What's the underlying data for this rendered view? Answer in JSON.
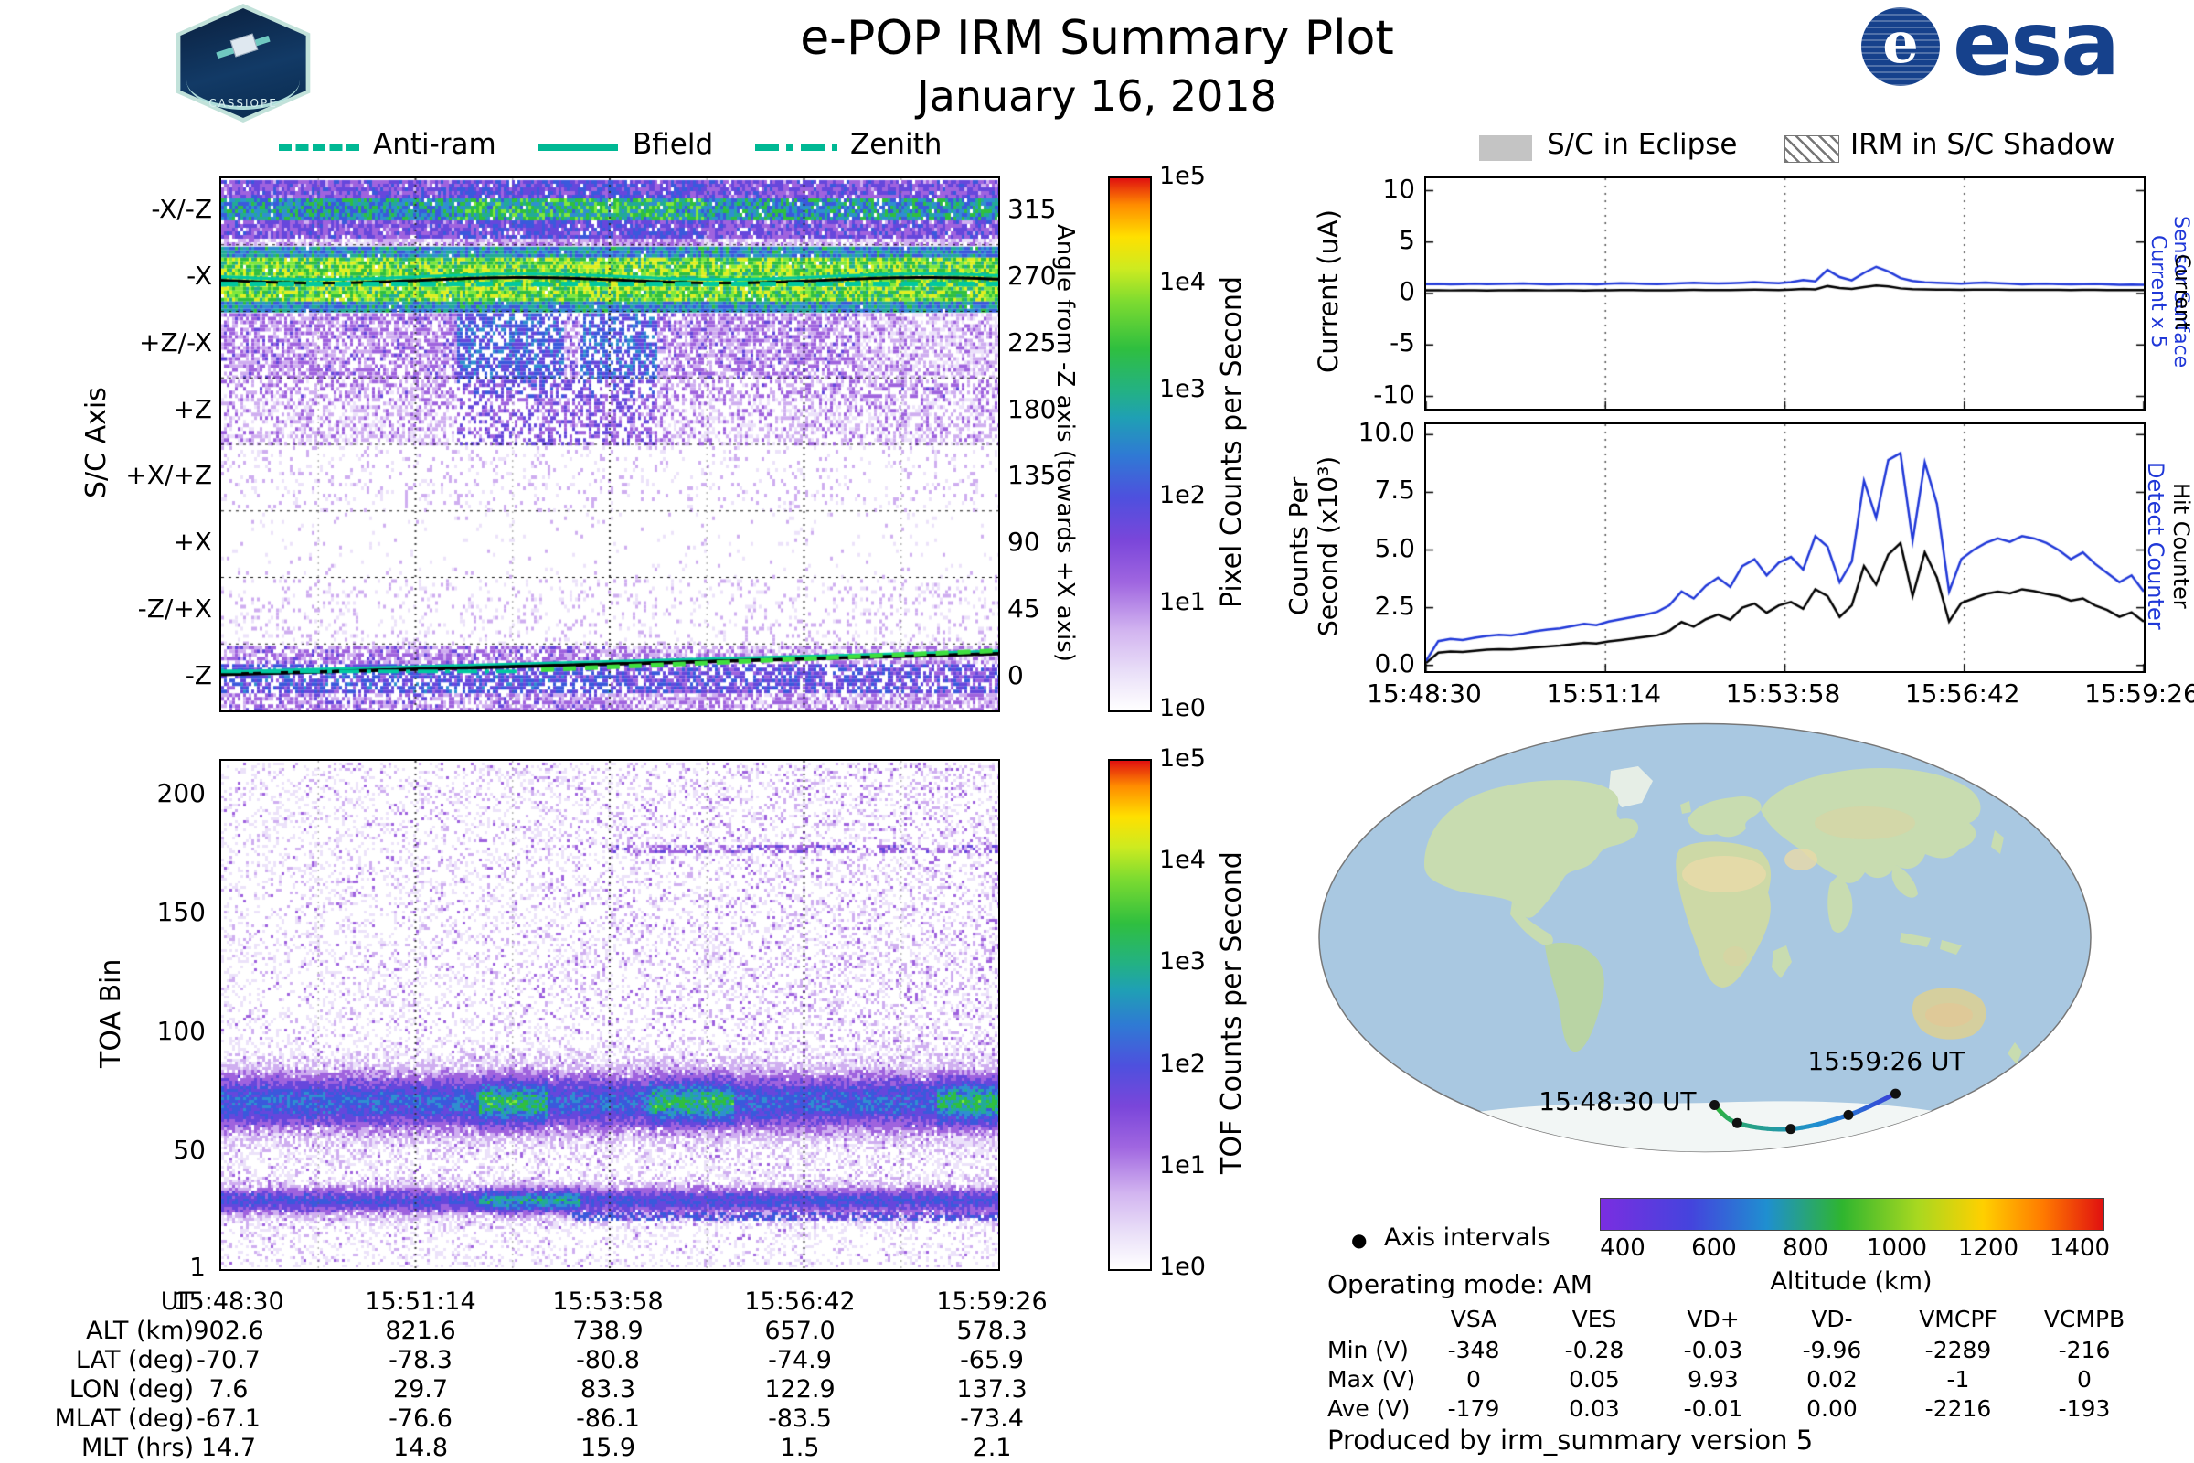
{
  "header": {
    "title": "e-POP IRM Summary Plot",
    "date": "January 16, 2018",
    "esa_logo_text": "esa",
    "cassiope_label": "CASSIOPE"
  },
  "colors": {
    "legend_teal": "#00b894",
    "series_blue": "#2038d8",
    "series_black": "#000000",
    "esa_blue": "#16418c"
  },
  "left_legend": {
    "anti_ram": "Anti-ram",
    "bfield": "Bfield",
    "zenith": "Zenith"
  },
  "right_legend": {
    "eclipse": "S/C in Eclipse",
    "shadow": "IRM in S/C Shadow"
  },
  "sc_axis_panel": {
    "ylabel": "S/C Axis",
    "row_labels": [
      "-X/-Z",
      "-X",
      "+Z/-X",
      "+Z",
      "+X/+Z",
      "+X",
      "-Z/+X",
      "-Z"
    ],
    "right_axis_label": "Angle from -Z axis (towards +X axis)",
    "right_ticks": [
      "315",
      "270",
      "225",
      "180",
      "135",
      "90",
      "45",
      "0"
    ],
    "colorbar": {
      "label": "Pixel Counts per Second",
      "ticks": [
        "1e5",
        "1e4",
        "1e3",
        "1e2",
        "1e1",
        "1e0"
      ]
    }
  },
  "toa_panel": {
    "ylabel": "TOA Bin",
    "yticks": [
      "200",
      "150",
      "100",
      "50",
      "1"
    ],
    "colorbar": {
      "label": "TOF Counts per Second",
      "ticks": [
        "1e5",
        "1e4",
        "1e3",
        "1e2",
        "1e1",
        "1e0"
      ]
    }
  },
  "time_axis": {
    "label": "UT",
    "ticks": [
      "15:48:30",
      "15:51:14",
      "15:53:58",
      "15:56:42",
      "15:59:26"
    ]
  },
  "current_panel": {
    "ylabel": "Current (uA)",
    "yticks": [
      "10",
      "5",
      "0",
      "-5",
      "-10"
    ],
    "right_labels": [
      {
        "text": "Sensor Surface Current x 5",
        "color": "#2038d8"
      },
      {
        "text": "Sensor Surface Current",
        "color": "#000000"
      }
    ]
  },
  "counts_panel": {
    "ylabel_lines": [
      "Counts Per",
      "Second (x10³)"
    ],
    "yticks": [
      "10.0",
      "7.5",
      "5.0",
      "2.5",
      "0.0"
    ],
    "right_labels": [
      {
        "text": "Detect Counter",
        "color": "#2038d8"
      },
      {
        "text": "Hit Counter",
        "color": "#000000"
      }
    ]
  },
  "ephemeris_table": {
    "rows": [
      {
        "label": "UT",
        "values": [
          "15:48:30",
          "15:51:14",
          "15:53:58",
          "15:56:42",
          "15:59:26"
        ]
      },
      {
        "label": "ALT (km)",
        "values": [
          "902.6",
          "821.6",
          "738.9",
          "657.0",
          "578.3"
        ]
      },
      {
        "label": "LAT (deg)",
        "values": [
          "-70.7",
          "-78.3",
          "-80.8",
          "-74.9",
          "-65.9"
        ]
      },
      {
        "label": "LON (deg)",
        "values": [
          "7.6",
          "29.7",
          "83.3",
          "122.9",
          "137.3"
        ]
      },
      {
        "label": "MLAT (deg)",
        "values": [
          "-67.1",
          "-76.6",
          "-86.1",
          "-83.5",
          "-73.4"
        ]
      },
      {
        "label": "MLT (hrs)",
        "values": [
          "14.7",
          "14.8",
          "15.9",
          "1.5",
          "2.1"
        ]
      }
    ]
  },
  "map_section": {
    "start_label": "15:48:30 UT",
    "end_label": "15:59:26 UT",
    "axis_intervals_label": "Axis intervals",
    "operating_mode": "Operating mode: AM",
    "altitude_bar": {
      "label": "Altitude (km)"
    },
    "produced_by": "Produced by irm_summary version 5"
  },
  "voltage_table": {
    "columns": [
      "VSA",
      "VES",
      "VD+",
      "VD-",
      "VMCPF",
      "VCMPB"
    ],
    "rows": [
      {
        "label": "Min (V)",
        "values": [
          "-348",
          "-0.28",
          "-0.03",
          "-9.96",
          "-2289",
          "-216"
        ]
      },
      {
        "label": "Max (V)",
        "values": [
          "0",
          "0.05",
          "9.93",
          "0.02",
          "-1",
          "0"
        ]
      },
      {
        "label": "Ave (V)",
        "values": [
          "-179",
          "0.03",
          "-0.01",
          "0.00",
          "-2216",
          "-193"
        ]
      }
    ]
  },
  "chart_data": [
    {
      "type": "heatmap",
      "name": "sc_axis_pixel_counts",
      "x_start": "15:48:30",
      "x_end": "15:59:26",
      "y_categories": [
        "-X/-Z",
        "-X",
        "+Z/-X",
        "+Z",
        "+X/+Z",
        "+X",
        "-Z/+X",
        "-Z"
      ],
      "right_axis_ticks_deg": [
        315,
        270,
        225,
        180,
        135,
        90,
        45,
        0
      ],
      "colorbar": {
        "label": "Pixel Counts per Second",
        "scale": "log10",
        "min": "1e0",
        "max": "1e5"
      },
      "row_activity_approx_counts": [
        "1e2-1e3 green band over purple noise",
        "1e3 continuous bright green band",
        "1e1 purple with 1e2 blue-green patches mid-interval",
        "1e1 sparse purple, patches mid-interval",
        "1e0 very sparse",
        "1e0 minimal",
        "1e0 very sparse",
        "1e1 purple band along pointing lines"
      ],
      "overlays": [
        {
          "name": "Bfield",
          "style": "solid",
          "angle_deg_start": 271,
          "angle_deg_end": 271
        },
        {
          "name": "Anti-ram",
          "style": "dashed",
          "angle_deg_start": 266,
          "angle_deg_end": 266
        },
        {
          "name": "Zenith",
          "style": "dash-dot",
          "angle_deg_start": 3,
          "angle_deg_end": 16
        }
      ]
    },
    {
      "type": "heatmap",
      "name": "toa_tof_counts",
      "ylabel": "TOA Bin",
      "y_range": [
        1,
        200
      ],
      "bands": [
        {
          "toa_bins": [
            55,
            88
          ],
          "intensity": "strong, ~1e2 blue-green core with 1e3 green patches"
        },
        {
          "toa_bins": [
            22,
            38
          ],
          "intensity": "strong, ~1e1-1e2 purple-blue with green patches mid-interval"
        }
      ],
      "diffuse": "sparse ~1e0-1e1 purple counts from bin 90 to 200, denser toward mid/right",
      "colorbar": {
        "label": "TOF Counts per Second",
        "scale": "log10",
        "min": "1e0",
        "max": "1e5"
      }
    },
    {
      "type": "line",
      "name": "sensor_current",
      "ylabel": "Current (uA)",
      "ylim": [
        -10,
        10
      ],
      "x_ticks": [
        "15:48:30",
        "15:51:14",
        "15:53:58",
        "15:56:42",
        "15:59:26"
      ],
      "series": [
        {
          "name": "Sensor Surface Current x 5",
          "color": "#2038d8",
          "values": [
            0.9,
            0.93,
            0.9,
            0.92,
            0.95,
            0.91,
            0.93,
            0.96,
            0.97,
            0.94,
            0.9,
            0.92,
            0.95,
            0.93,
            0.9,
            0.95,
            1.0,
            0.97,
            0.94,
            0.92,
            0.96,
            1.0,
            1.04,
            1.0,
            0.97,
            1.0,
            1.05,
            1.1,
            1.05,
            1.0,
            1.12,
            1.3,
            1.18,
            2.3,
            1.6,
            1.28,
            2.0,
            2.6,
            2.15,
            1.5,
            1.22,
            1.1,
            1.05,
            1.0,
            0.96,
            1.02,
            1.06,
            1.0,
            0.95,
            0.9,
            0.93,
            0.96,
            0.9,
            0.88,
            0.9,
            0.93,
            0.88,
            0.85,
            0.87,
            0.84
          ]
        },
        {
          "name": "Sensor Surface Current",
          "color": "#000000",
          "values": [
            0.3,
            0.31,
            0.3,
            0.31,
            0.32,
            0.3,
            0.31,
            0.32,
            0.33,
            0.31,
            0.3,
            0.31,
            0.32,
            0.3,
            0.31,
            0.32,
            0.34,
            0.33,
            0.32,
            0.31,
            0.32,
            0.34,
            0.35,
            0.34,
            0.33,
            0.34,
            0.36,
            0.37,
            0.36,
            0.34,
            0.38,
            0.44,
            0.4,
            0.72,
            0.54,
            0.44,
            0.63,
            0.78,
            0.68,
            0.5,
            0.42,
            0.4,
            0.38,
            0.37,
            0.36,
            0.37,
            0.38,
            0.37,
            0.36,
            0.35,
            0.35,
            0.36,
            0.35,
            0.34,
            0.35,
            0.36,
            0.34,
            0.33,
            0.34,
            0.33
          ]
        }
      ]
    },
    {
      "type": "line",
      "name": "counters",
      "ylabel": "Counts Per Second (x10³)",
      "ylim": [
        0,
        10
      ],
      "x_ticks": [
        "15:48:30",
        "15:51:14",
        "15:53:58",
        "15:56:42",
        "15:59:26"
      ],
      "series": [
        {
          "name": "Detect Counter",
          "color": "#2038d8",
          "values": [
            0.2,
            1.05,
            1.15,
            1.1,
            1.2,
            1.28,
            1.33,
            1.3,
            1.38,
            1.48,
            1.55,
            1.6,
            1.7,
            1.8,
            1.74,
            1.9,
            2.0,
            2.1,
            2.2,
            2.32,
            2.6,
            3.2,
            2.9,
            3.45,
            3.8,
            3.4,
            4.3,
            4.6,
            3.9,
            4.45,
            4.7,
            4.15,
            5.6,
            5.15,
            3.6,
            4.5,
            8.0,
            6.4,
            8.9,
            9.2,
            5.4,
            8.8,
            7.0,
            3.2,
            4.6,
            5.0,
            5.3,
            5.5,
            5.35,
            5.6,
            5.5,
            5.3,
            5.0,
            4.6,
            4.9,
            4.4,
            4.0,
            3.6,
            3.9,
            3.2
          ]
        },
        {
          "name": "Hit Counter",
          "color": "#000000",
          "values": [
            0.1,
            0.55,
            0.6,
            0.58,
            0.63,
            0.68,
            0.7,
            0.69,
            0.73,
            0.78,
            0.82,
            0.86,
            0.92,
            0.98,
            0.95,
            1.04,
            1.1,
            1.17,
            1.24,
            1.3,
            1.5,
            1.88,
            1.68,
            2.0,
            2.2,
            1.98,
            2.5,
            2.68,
            2.28,
            2.6,
            2.75,
            2.45,
            3.3,
            3.0,
            2.1,
            2.6,
            4.3,
            3.5,
            4.8,
            5.3,
            3.0,
            4.9,
            3.8,
            1.9,
            2.7,
            2.9,
            3.1,
            3.2,
            3.12,
            3.3,
            3.22,
            3.1,
            3.0,
            2.8,
            2.9,
            2.6,
            2.4,
            2.1,
            2.3,
            1.9
          ]
        }
      ]
    },
    {
      "type": "track",
      "name": "ground_track",
      "points": [
        {
          "ut": "15:48:30",
          "lat": -70.7,
          "lon": 7.6,
          "alt_km": 902.6
        },
        {
          "ut": "15:51:14",
          "lat": -78.3,
          "lon": 29.7,
          "alt_km": 821.6
        },
        {
          "ut": "15:53:58",
          "lat": -80.8,
          "lon": 83.3,
          "alt_km": 738.9
        },
        {
          "ut": "15:56:42",
          "lat": -74.9,
          "lon": 122.9,
          "alt_km": 657.0
        },
        {
          "ut": "15:59:26",
          "lat": -65.9,
          "lon": 137.3,
          "alt_km": 578.3
        }
      ]
    },
    {
      "type": "colorbar",
      "name": "altitude_scale",
      "label": "Altitude (km)",
      "range_km": [
        350,
        1450
      ],
      "ticks": [
        400,
        600,
        800,
        1000,
        1200,
        1400
      ]
    }
  ]
}
